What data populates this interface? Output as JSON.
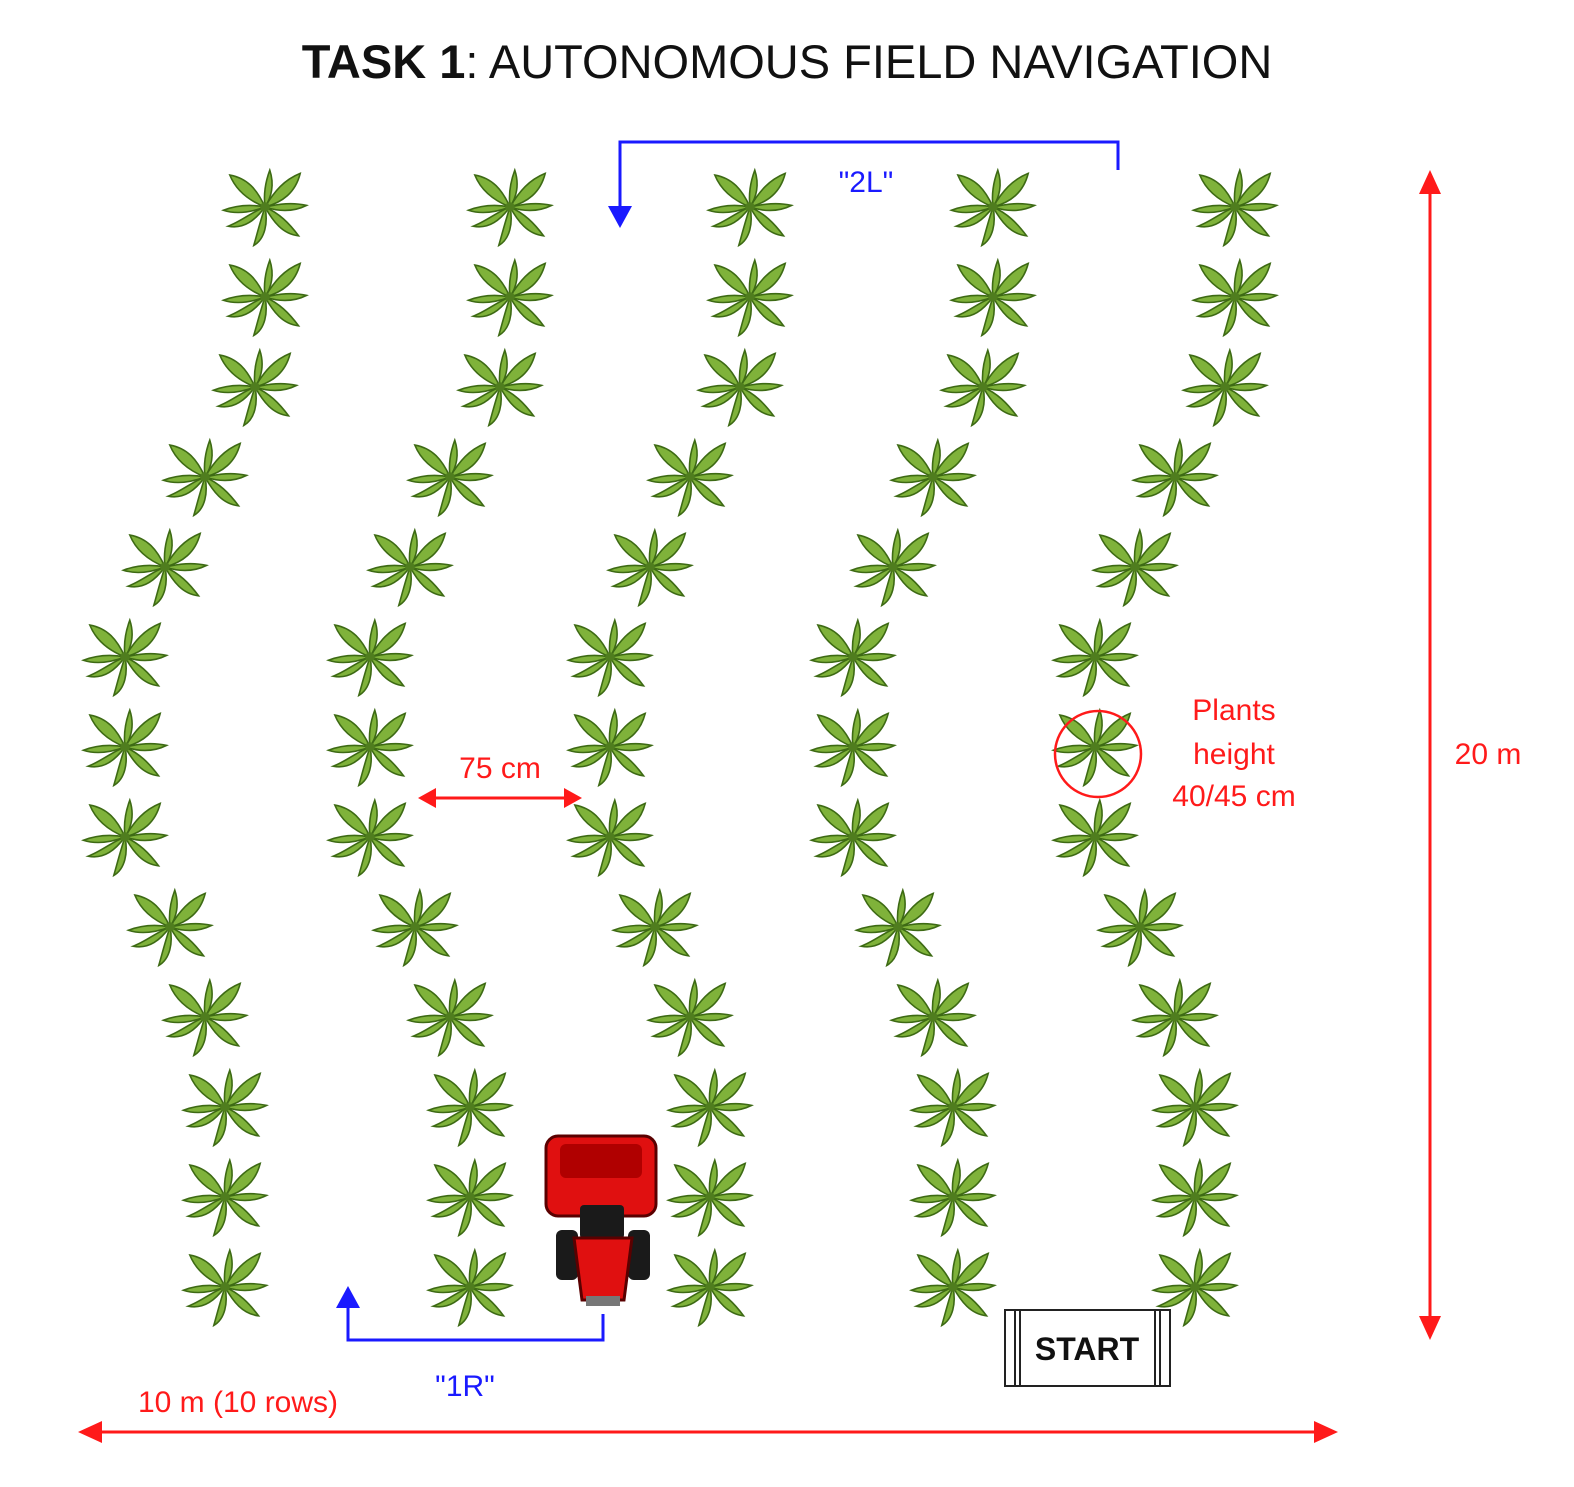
{
  "title": {
    "bold": "TASK 1",
    "rest": ": AUTONOMOUS FIELD NAVIGATION"
  },
  "labels": {
    "turn_left": "\"2L\"",
    "turn_right": "\"1R\"",
    "row_spacing": "75 cm",
    "plant_height_1": "Plants",
    "plant_height_2": "height",
    "plant_height_3": "40/45 cm",
    "field_length": "20 m",
    "field_width": "10 m (10 rows)",
    "start": "START"
  },
  "field": {
    "rows": 5,
    "plants_per_row": 13
  },
  "colors": {
    "measure": "#ff1a1a",
    "path": "#1a1aff",
    "leaf": "#7fb23a",
    "leaf_dark": "#4f7d1e",
    "robot": "#e01010"
  },
  "icons": [
    "plant-icon",
    "robot-tractor-icon",
    "start-box-icon",
    "arrow-icon"
  ]
}
